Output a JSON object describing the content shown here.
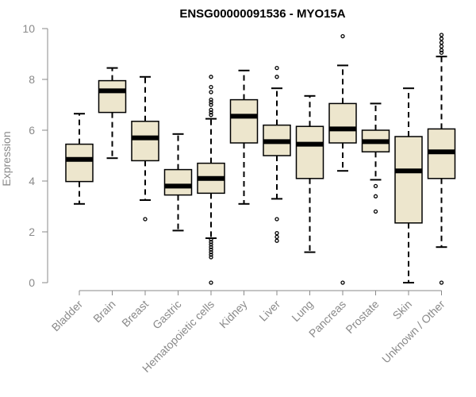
{
  "chart_data": {
    "type": "boxplot",
    "title": "ENSG00000091536 - MYO15A",
    "xlabel": "",
    "ylabel": "Expression",
    "ylim": [
      0,
      10
    ],
    "yticks": [
      0,
      2,
      4,
      6,
      8,
      10
    ],
    "style": {
      "box_fill": "#ede6cd",
      "box_stroke": "#000000",
      "median_color": "#000000",
      "axis_color": "#8a8a8a"
    },
    "categories": [
      "Bladder",
      "Brain",
      "Breast",
      "Gastric",
      "Hematopoietic cells",
      "Kidney",
      "Liver",
      "Lung",
      "Pancreas",
      "Prostate",
      "Skin",
      "Unknown / Other"
    ],
    "boxes": [
      {
        "q1": 3.98,
        "median": 4.85,
        "q3": 5.45,
        "whisker_low": 3.1,
        "whisker_high": 6.65,
        "outliers": []
      },
      {
        "q1": 6.7,
        "median": 7.55,
        "q3": 7.95,
        "whisker_low": 4.9,
        "whisker_high": 8.45,
        "outliers": []
      },
      {
        "q1": 4.8,
        "median": 5.7,
        "q3": 6.35,
        "whisker_low": 3.25,
        "whisker_high": 8.1,
        "outliers": [
          2.5
        ]
      },
      {
        "q1": 3.45,
        "median": 3.8,
        "q3": 4.45,
        "whisker_low": 2.05,
        "whisker_high": 5.85,
        "outliers": []
      },
      {
        "q1": 3.52,
        "median": 4.1,
        "q3": 4.7,
        "whisker_low": 1.75,
        "whisker_high": 6.45,
        "outliers": [
          0.0,
          1.0,
          1.1,
          1.2,
          1.3,
          1.4,
          1.5,
          1.6,
          1.7,
          6.6,
          6.7,
          6.8,
          7.0,
          7.1,
          7.2,
          7.5,
          7.7,
          8.1
        ]
      },
      {
        "q1": 5.5,
        "median": 6.55,
        "q3": 7.2,
        "whisker_low": 3.1,
        "whisker_high": 8.35,
        "outliers": []
      },
      {
        "q1": 5.0,
        "median": 5.55,
        "q3": 6.2,
        "whisker_low": 3.3,
        "whisker_high": 7.65,
        "outliers": [
          1.65,
          1.8,
          1.95,
          2.5,
          8.1,
          8.45
        ]
      },
      {
        "q1": 4.1,
        "median": 5.45,
        "q3": 6.15,
        "whisker_low": 1.2,
        "whisker_high": 7.35,
        "outliers": []
      },
      {
        "q1": 5.5,
        "median": 6.05,
        "q3": 7.05,
        "whisker_low": 4.4,
        "whisker_high": 8.55,
        "outliers": [
          0.0,
          9.7
        ]
      },
      {
        "q1": 5.15,
        "median": 5.55,
        "q3": 6.0,
        "whisker_low": 4.05,
        "whisker_high": 7.05,
        "outliers": [
          2.8,
          3.4,
          3.8
        ]
      },
      {
        "q1": 2.35,
        "median": 4.4,
        "q3": 5.75,
        "whisker_low": 0.0,
        "whisker_high": 7.65,
        "outliers": []
      },
      {
        "q1": 4.1,
        "median": 5.15,
        "q3": 6.05,
        "whisker_low": 1.4,
        "whisker_high": 8.9,
        "outliers": [
          0.0,
          9.05,
          9.15,
          9.3,
          9.45,
          9.6,
          9.75
        ]
      }
    ]
  }
}
